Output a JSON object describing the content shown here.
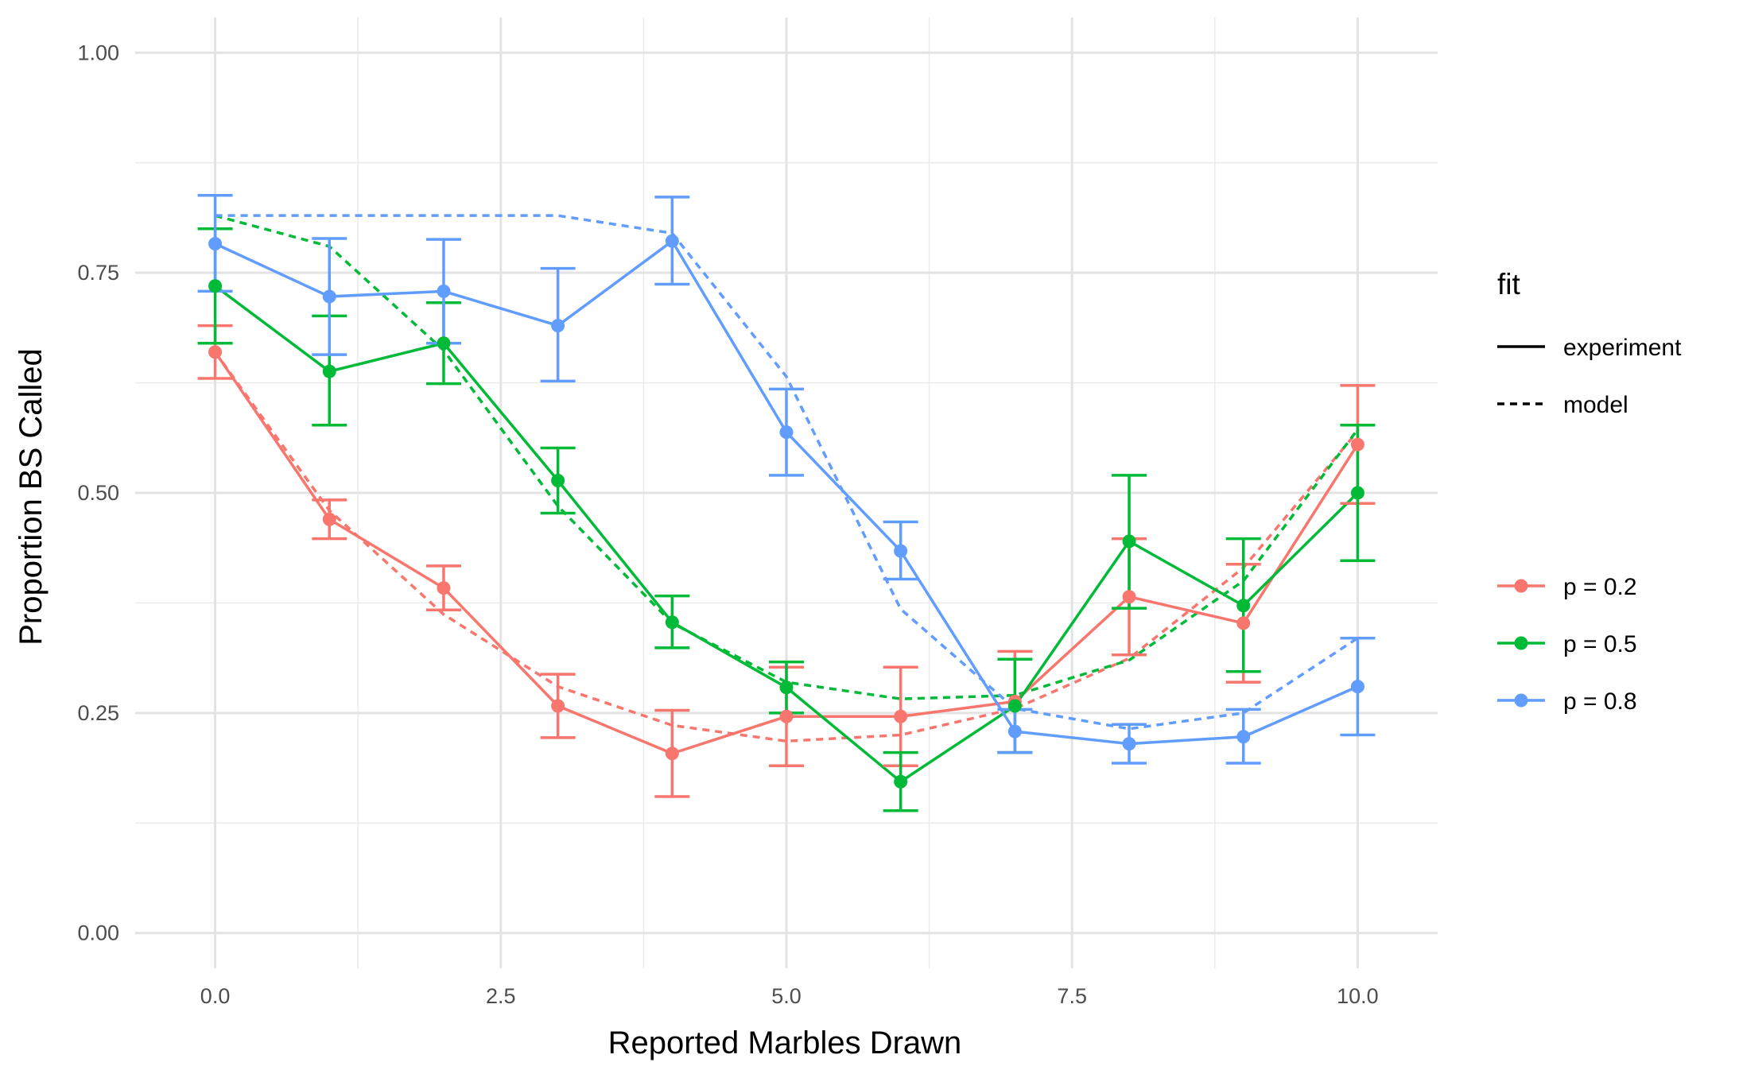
{
  "chart_data": {
    "type": "line",
    "xlabel": "Reported Marbles Drawn",
    "ylabel": "Proportion BS Called",
    "xlim": [
      -0.7,
      10.7
    ],
    "ylim": [
      -0.04,
      1.04
    ],
    "x_ticks": [
      "0.0",
      "2.5",
      "5.0",
      "7.5",
      "10.0"
    ],
    "x_tick_values": [
      0,
      2.5,
      5,
      7.5,
      10
    ],
    "x_minor_values": [
      1.25,
      3.75,
      6.25,
      8.75
    ],
    "y_ticks": [
      "0.00",
      "0.25",
      "0.50",
      "0.75",
      "1.00"
    ],
    "y_tick_values": [
      0,
      0.25,
      0.5,
      0.75,
      1.0
    ],
    "y_minor_values": [
      0.125,
      0.375,
      0.625,
      0.875
    ],
    "grid": true,
    "x": [
      0,
      1,
      2,
      3,
      4,
      5,
      6,
      7,
      8,
      9,
      10
    ],
    "linetype_legend": {
      "title": "fit",
      "items": [
        {
          "label": "experiment",
          "dash": "solid"
        },
        {
          "label": "model",
          "dash": "dashed"
        }
      ]
    },
    "color_legend": {
      "items": [
        {
          "label": "p = 0.2",
          "color": "#F8766D"
        },
        {
          "label": "p = 0.5",
          "color": "#00BA38"
        },
        {
          "label": "p = 0.8",
          "color": "#619CFF"
        }
      ]
    },
    "series": [
      {
        "name": "p = 0.2",
        "color": "#F8766D",
        "experiment": [
          0.66,
          0.47,
          0.392,
          0.258,
          0.204,
          0.246,
          0.246,
          0.263,
          0.382,
          0.352,
          0.555
        ],
        "error_low": [
          0.63,
          0.448,
          0.367,
          0.222,
          0.155,
          0.19,
          0.19,
          0.205,
          0.316,
          0.285,
          0.488
        ],
        "error_high": [
          0.69,
          0.492,
          0.417,
          0.294,
          0.253,
          0.302,
          0.302,
          0.32,
          0.448,
          0.419,
          0.622
        ],
        "model": [
          0.66,
          0.48,
          0.362,
          0.28,
          0.236,
          0.218,
          0.225,
          0.255,
          0.312,
          0.415,
          0.57
        ]
      },
      {
        "name": "p = 0.5",
        "color": "#00BA38",
        "experiment": [
          0.735,
          0.638,
          0.67,
          0.514,
          0.353,
          0.279,
          0.172,
          0.258,
          0.445,
          0.372,
          0.5
        ],
        "error_low": [
          0.67,
          0.577,
          0.624,
          0.477,
          0.324,
          0.25,
          0.139,
          0.205,
          0.369,
          0.297,
          0.423
        ],
        "error_high": [
          0.8,
          0.701,
          0.716,
          0.551,
          0.383,
          0.308,
          0.205,
          0.311,
          0.52,
          0.448,
          0.577
        ],
        "model": [
          0.815,
          0.78,
          0.662,
          0.485,
          0.352,
          0.285,
          0.266,
          0.27,
          0.31,
          0.4,
          0.572
        ]
      },
      {
        "name": "p = 0.8",
        "color": "#619CFF",
        "experiment": [
          0.783,
          0.723,
          0.729,
          0.69,
          0.786,
          0.569,
          0.434,
          0.229,
          0.215,
          0.223,
          0.28
        ],
        "error_low": [
          0.729,
          0.657,
          0.67,
          0.627,
          0.737,
          0.52,
          0.402,
          0.205,
          0.193,
          0.193,
          0.225
        ],
        "error_high": [
          0.838,
          0.789,
          0.788,
          0.755,
          0.836,
          0.618,
          0.467,
          0.254,
          0.237,
          0.254,
          0.335
        ],
        "model": [
          0.815,
          0.815,
          0.815,
          0.815,
          0.795,
          0.632,
          0.368,
          0.255,
          0.232,
          0.25,
          0.335
        ]
      }
    ]
  }
}
